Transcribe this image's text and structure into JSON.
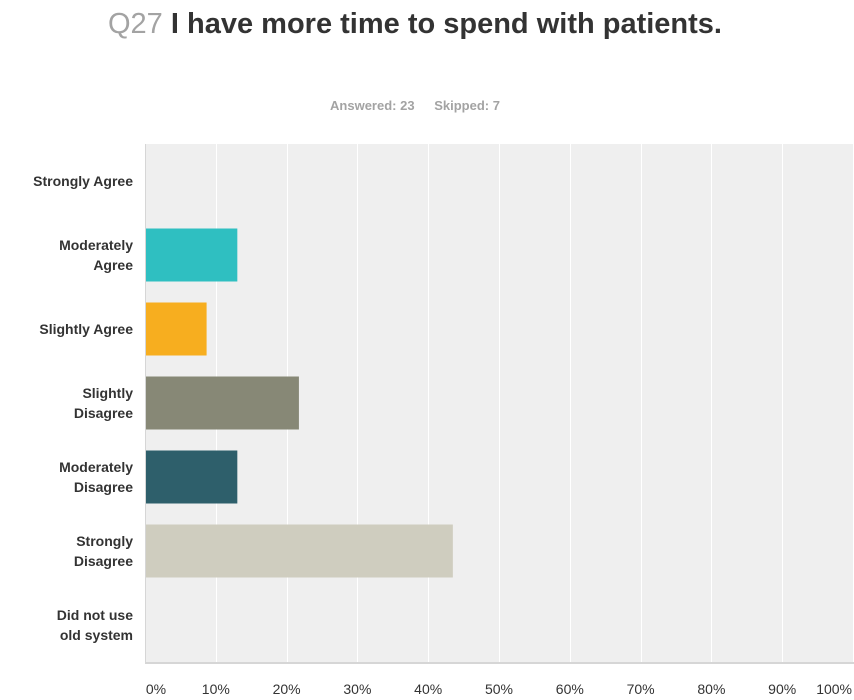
{
  "question": {
    "number": "Q27",
    "text": "I have more time to spend with patients."
  },
  "summary": {
    "answered": "Answered: 23",
    "skipped": "Skipped: 7"
  },
  "colors": {
    "plot_background": "#efefef",
    "gridline": "#ffffff",
    "axis": "#d6d6d6"
  },
  "chart_data": {
    "type": "bar",
    "orientation": "horizontal",
    "categories": [
      [
        "Strongly Agree"
      ],
      [
        "Moderately",
        "Agree"
      ],
      [
        "Slightly Agree"
      ],
      [
        "Slightly",
        "Disagree"
      ],
      [
        "Moderately",
        "Disagree"
      ],
      [
        "Strongly",
        "Disagree"
      ],
      [
        "Did not use",
        "old system"
      ]
    ],
    "values": [
      0,
      13.04,
      8.7,
      21.74,
      13.04,
      43.48,
      0
    ],
    "bar_colors": [
      "#2fbfc1",
      "#2fbfc1",
      "#f7ae1f",
      "#878876",
      "#2e5f6b",
      "#cfcdbf",
      "#cccccc"
    ],
    "xlim": [
      0,
      100
    ],
    "xticks": [
      "0%",
      "10%",
      "20%",
      "30%",
      "40%",
      "50%",
      "60%",
      "70%",
      "80%",
      "90%",
      "100%"
    ],
    "grid": true
  }
}
